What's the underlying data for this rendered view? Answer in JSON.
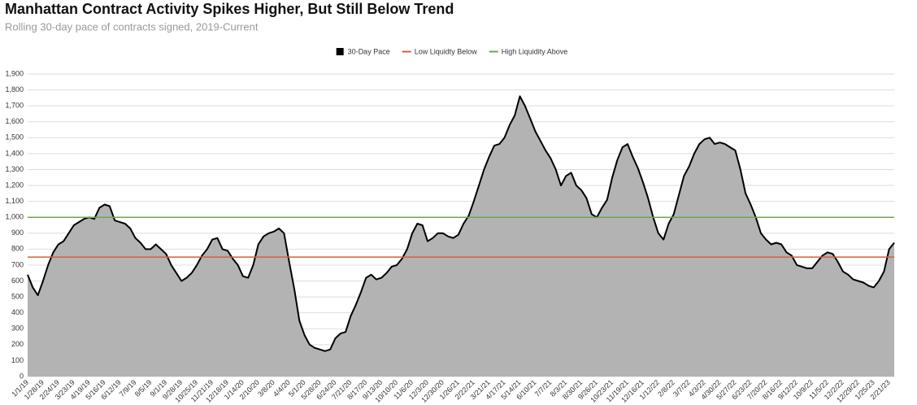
{
  "chart_data": {
    "type": "area",
    "title": "Manhattan Contract Activity Spikes Higher, But Still Below Trend",
    "subtitle": "Rolling 30-day pace of contracts signed, 2019-Current",
    "categories": [
      "1/1/19",
      null,
      null,
      "1/28/19",
      null,
      null,
      "2/24/19",
      null,
      null,
      "3/23/19",
      null,
      null,
      "4/19/19",
      null,
      null,
      "5/16/19",
      null,
      null,
      "6/12/19",
      null,
      null,
      "7/9/19",
      null,
      null,
      "8/5/19",
      null,
      null,
      "9/1/19",
      null,
      null,
      "9/28/19",
      null,
      null,
      "10/25/19",
      null,
      null,
      "11/21/19",
      null,
      null,
      "12/18/19",
      null,
      null,
      "1/14/20",
      null,
      null,
      "2/10/20",
      null,
      null,
      "3/8/20",
      null,
      null,
      "4/4/20",
      null,
      null,
      "5/1/20",
      null,
      null,
      "5/28/20",
      null,
      null,
      "6/24/20",
      null,
      null,
      "7/21/20",
      null,
      null,
      "8/17/20",
      null,
      null,
      "9/13/20",
      null,
      null,
      "10/10/20",
      null,
      null,
      "11/6/20",
      null,
      null,
      "12/3/20",
      null,
      null,
      "12/30/20",
      null,
      null,
      "1/26/21",
      null,
      null,
      "2/22/21",
      null,
      null,
      "3/21/21",
      null,
      null,
      "4/17/21",
      null,
      null,
      "5/14/21",
      null,
      null,
      "6/10/21",
      null,
      null,
      "7/7/21",
      null,
      null,
      "8/3/21",
      null,
      null,
      "8/30/21",
      null,
      null,
      "9/26/21",
      null,
      null,
      "10/23/21",
      null,
      null,
      "11/19/21",
      null,
      null,
      "12/16/21",
      null,
      null,
      "1/12/22",
      null,
      null,
      "2/8/22",
      null,
      null,
      "3/7/22",
      null,
      null,
      "4/3/22",
      null,
      null,
      "4/30/22",
      null,
      null,
      "5/27/22",
      null,
      null,
      "6/23/22",
      null,
      null,
      "7/20/22",
      null,
      null,
      "8/16/22",
      null,
      null,
      "9/12/22",
      null,
      null,
      "10/9/22",
      null,
      null,
      "11/5/22",
      null,
      null,
      "12/2/22",
      null,
      null,
      "12/29/22",
      null,
      null,
      "1/25/23",
      null,
      null,
      "2/21/23",
      null
    ],
    "series": [
      {
        "name": "30-Day Pace",
        "color": "#000000",
        "fill": "#b3b3b3",
        "values": [
          640,
          560,
          510,
          600,
          700,
          780,
          830,
          850,
          900,
          950,
          970,
          990,
          1000,
          990,
          1060,
          1080,
          1070,
          980,
          970,
          960,
          930,
          870,
          840,
          800,
          800,
          830,
          800,
          770,
          700,
          650,
          600,
          620,
          650,
          700,
          760,
          800,
          860,
          870,
          800,
          790,
          740,
          700,
          630,
          620,
          700,
          830,
          880,
          900,
          910,
          930,
          900,
          720,
          550,
          350,
          260,
          200,
          180,
          170,
          160,
          170,
          240,
          270,
          280,
          380,
          450,
          530,
          620,
          640,
          610,
          620,
          650,
          690,
          700,
          740,
          800,
          900,
          960,
          950,
          850,
          870,
          900,
          900,
          880,
          870,
          890,
          960,
          1010,
          1100,
          1200,
          1300,
          1380,
          1450,
          1460,
          1500,
          1580,
          1640,
          1760,
          1700,
          1620,
          1540,
          1480,
          1420,
          1370,
          1300,
          1200,
          1260,
          1280,
          1200,
          1170,
          1120,
          1020,
          1000,
          1060,
          1110,
          1250,
          1360,
          1440,
          1460,
          1380,
          1310,
          1220,
          1120,
          1000,
          900,
          860,
          960,
          1020,
          1140,
          1260,
          1320,
          1400,
          1460,
          1490,
          1500,
          1460,
          1470,
          1460,
          1440,
          1420,
          1300,
          1150,
          1080,
          1000,
          900,
          860,
          830,
          840,
          830,
          780,
          760,
          700,
          690,
          680,
          680,
          720,
          760,
          780,
          770,
          720,
          660,
          640,
          610,
          600,
          590,
          570,
          560,
          600,
          660,
          800,
          840
        ]
      }
    ],
    "reference_lines": [
      {
        "name": "Low Liquidty Below",
        "color": "#d0623f",
        "value": 750
      },
      {
        "name": "High Liquidity Above",
        "color": "#6aa84f",
        "value": 1000
      }
    ],
    "ylim": [
      0,
      1900
    ],
    "yticks": [
      0,
      100,
      200,
      300,
      400,
      500,
      600,
      700,
      800,
      900,
      {
        "value": 1000,
        "label": "1,000"
      },
      {
        "value": 1100,
        "label": "1,100"
      },
      {
        "value": 1200,
        "label": "1,200"
      },
      {
        "value": 1300,
        "label": "1,300"
      },
      {
        "value": 1400,
        "label": "1,400"
      },
      {
        "value": 1500,
        "label": "1,500"
      },
      {
        "value": 1600,
        "label": "1,600"
      },
      {
        "value": 1700,
        "label": "1,700"
      },
      {
        "value": 1800,
        "label": "1,800"
      },
      {
        "value": 1900,
        "label": "1,900"
      }
    ],
    "grid": true
  }
}
